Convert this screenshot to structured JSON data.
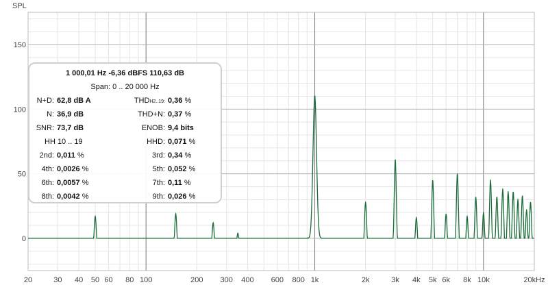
{
  "chart_data": {
    "type": "line",
    "ylabel": "SPL",
    "xscale": "log",
    "xlim": [
      20,
      20000
    ],
    "ylim": [
      -25,
      175
    ],
    "x_ticks": [
      20,
      30,
      40,
      50,
      60,
      80,
      100,
      200,
      300,
      400,
      600,
      800,
      1000,
      2000,
      3000,
      4000,
      5000,
      6000,
      8000,
      10000,
      20000
    ],
    "x_tick_labels": [
      "20",
      "30",
      "40",
      "50",
      "60",
      "80",
      "100",
      "200",
      "300",
      "400",
      "600",
      "800",
      "1k",
      "2k",
      "3k",
      "4k",
      "5k",
      "6k",
      "8k",
      "10k",
      "20kHz"
    ],
    "y_ticks": [
      0,
      50,
      100,
      150
    ],
    "y_tick_labels": [
      "0",
      "50",
      "100",
      "150"
    ],
    "grid": true,
    "series": [
      {
        "color": "#1a6b38",
        "noise_floor": [
          {
            "x": 20,
            "y": -5
          },
          {
            "x": 25,
            "y": -4
          },
          {
            "x": 30,
            "y": -8
          },
          {
            "x": 40,
            "y": -10
          },
          {
            "x": 60,
            "y": -12
          },
          {
            "x": 100,
            "y": -13
          },
          {
            "x": 200,
            "y": -13
          },
          {
            "x": 300,
            "y": -12
          },
          {
            "x": 500,
            "y": -10
          },
          {
            "x": 700,
            "y": -7
          },
          {
            "x": 900,
            "y": -3
          },
          {
            "x": 1000,
            "y": 0
          },
          {
            "x": 1200,
            "y": -6
          },
          {
            "x": 2000,
            "y": -12
          },
          {
            "x": 5000,
            "y": -15
          },
          {
            "x": 10000,
            "y": -16
          },
          {
            "x": 20000,
            "y": -17
          }
        ],
        "peaks": [
          {
            "x": 50,
            "y": 17
          },
          {
            "x": 150,
            "y": 19
          },
          {
            "x": 250,
            "y": 12
          },
          {
            "x": 350,
            "y": 4
          },
          {
            "x": 1000,
            "y": 110.63
          },
          {
            "x": 2000,
            "y": 28
          },
          {
            "x": 3000,
            "y": 61
          },
          {
            "x": 4000,
            "y": 16
          },
          {
            "x": 5000,
            "y": 45
          },
          {
            "x": 6000,
            "y": 19
          },
          {
            "x": 7000,
            "y": 50
          },
          {
            "x": 8000,
            "y": 17
          },
          {
            "x": 9000,
            "y": 32
          },
          {
            "x": 10000,
            "y": 20
          },
          {
            "x": 11000,
            "y": 45
          },
          {
            "x": 12000,
            "y": 32
          },
          {
            "x": 13000,
            "y": 38
          },
          {
            "x": 14000,
            "y": 36
          },
          {
            "x": 15000,
            "y": 36
          },
          {
            "x": 16000,
            "y": 30
          },
          {
            "x": 17000,
            "y": 33
          },
          {
            "x": 18000,
            "y": 22
          },
          {
            "x": 19000,
            "y": 28
          }
        ]
      }
    ]
  },
  "info_box": {
    "header": "1 000,01 Hz  -6,36 dBFS  110,63 dB",
    "span": "Span: 0 .. 20 000 Hz",
    "nd_label": "N+D:",
    "nd_value": "62,8 dB A",
    "thd_h2_label": "THD",
    "thd_h2_sub": "H2..19:",
    "thd_h2_value": "0,36",
    "n_label": "N:",
    "n_value": "36,9 dB",
    "thdn_label": "THD+N:",
    "thdn_value": "0,37",
    "snr_label": "SNR:",
    "snr_value": "73,7 dB",
    "enob_label": "ENOB:",
    "enob_value": "9,4 bits",
    "hh_label": "HH 10 .. 19",
    "hhd_label": "HHD:",
    "hhd_value": "0,071",
    "h2_label": "2nd:",
    "h2_value": "0,011",
    "h3_label": "3rd:",
    "h3_value": "0,34",
    "h4_label": "4th:",
    "h4_value": "0,0026",
    "h5_label": "5th:",
    "h5_value": "0,052",
    "h6_label": "6th:",
    "h6_value": "0,0057",
    "h7_label": "7th:",
    "h7_value": "0,11",
    "h8_label": "8th:",
    "h8_value": "0,0042",
    "h9_label": "9th:",
    "h9_value": "0,026",
    "percent": "%"
  }
}
